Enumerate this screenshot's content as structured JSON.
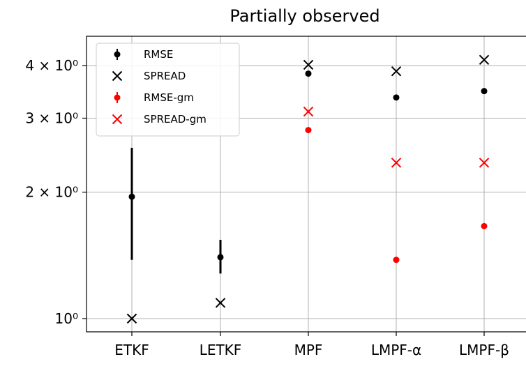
{
  "chart_data": {
    "type": "scatter",
    "title": "Partially observed",
    "xlabel": "",
    "ylabel": "",
    "yscale": "log",
    "ylim": [
      0.93,
      4.7
    ],
    "grid": true,
    "legend_position": "top-left",
    "categories": [
      "ETKF",
      "LETKF",
      "MPF",
      "LMPF-α",
      "LMPF-β"
    ],
    "y_ticks": [
      {
        "value": 1,
        "label": "10⁰"
      },
      {
        "value": 2,
        "label": "2 × 10⁰"
      },
      {
        "value": 3,
        "label": "3 × 10⁰"
      },
      {
        "value": 4,
        "label": "4 × 10⁰"
      }
    ],
    "series": [
      {
        "name": "RMSE",
        "marker": "dot",
        "color": "#000000",
        "values": [
          1.95,
          1.4,
          3.83,
          3.36,
          3.48
        ],
        "err_low": [
          1.38,
          1.28,
          null,
          null,
          null
        ],
        "err_high": [
          2.55,
          1.54,
          null,
          null,
          null
        ]
      },
      {
        "name": "SPREAD",
        "marker": "x",
        "color": "#000000",
        "values": [
          1.0,
          1.09,
          4.02,
          3.88,
          4.13
        ]
      },
      {
        "name": "RMSE-gm",
        "marker": "dot",
        "color": "#ff0000",
        "values": [
          null,
          null,
          2.81,
          1.38,
          1.66
        ]
      },
      {
        "name": "SPREAD-gm",
        "marker": "x",
        "color": "#ff0000",
        "values": [
          null,
          null,
          3.11,
          2.35,
          2.35
        ]
      }
    ]
  }
}
